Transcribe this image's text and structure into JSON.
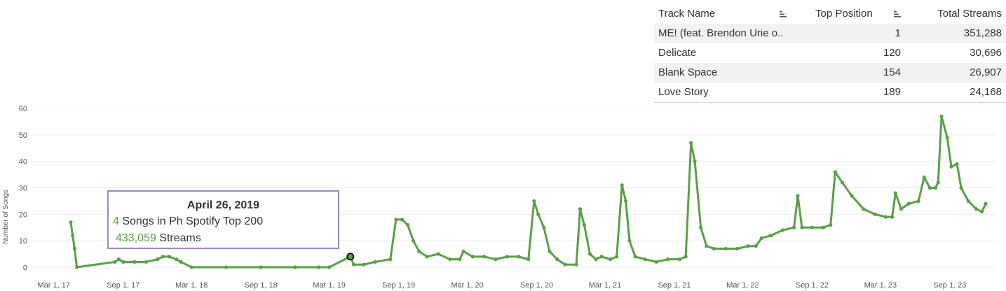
{
  "colors": {
    "line": "#5aa046",
    "grid": "#ececec",
    "tooltip_border": "#9b87c4",
    "accent": "#5aa046"
  },
  "table": {
    "headers": {
      "track": "Track Name",
      "position": "Top Position",
      "streams": "Total Streams"
    },
    "rows": [
      {
        "track": "ME! (feat. Brendon Urie o..",
        "position": "1",
        "streams": "351,288"
      },
      {
        "track": "Delicate",
        "position": "120",
        "streams": "30,696"
      },
      {
        "track": "Blank Space",
        "position": "154",
        "streams": "26,907"
      },
      {
        "track": "Love Story",
        "position": "189",
        "streams": "24,168"
      }
    ]
  },
  "tooltip": {
    "date": "April 26, 2019",
    "songs_count": "4",
    "songs_text": " Songs in Ph Spotify Top 200",
    "streams_count": "433,059",
    "streams_text": " Streams"
  },
  "chart_data": {
    "type": "line",
    "ylabel": "Number of Songs",
    "ylim": [
      0,
      60
    ],
    "yticks": [
      0,
      10,
      20,
      30,
      40,
      50,
      60
    ],
    "grid": true,
    "xticks": [
      "Mar 1, 17",
      "Sep 1, 17",
      "Mar 1, 18",
      "Sep 1, 18",
      "Mar 1, 19",
      "Sep 1, 19",
      "Mar 1, 20",
      "Sep 1, 20",
      "Mar 1, 21",
      "Sep 1, 21",
      "Mar 1, 22",
      "Sep 1, 22",
      "Mar 1, 23",
      "Sep 1, 23"
    ],
    "xlim": [
      "2017-01-01",
      "2023-12-31"
    ],
    "highlight": {
      "x": "2019-04-26",
      "y": 4
    },
    "points": [
      [
        "2017-04-15",
        17
      ],
      [
        "2017-04-20",
        12
      ],
      [
        "2017-04-25",
        7
      ],
      [
        "2017-05-01",
        0
      ],
      [
        "2017-08-10",
        2
      ],
      [
        "2017-08-20",
        3
      ],
      [
        "2017-09-01",
        2
      ],
      [
        "2017-10-01",
        2
      ],
      [
        "2017-11-01",
        2
      ],
      [
        "2017-12-01",
        3
      ],
      [
        "2017-12-15",
        4
      ],
      [
        "2018-01-01",
        4
      ],
      [
        "2018-01-20",
        3
      ],
      [
        "2018-02-01",
        2
      ],
      [
        "2018-03-01",
        0
      ],
      [
        "2018-06-01",
        0
      ],
      [
        "2018-09-01",
        0
      ],
      [
        "2018-12-01",
        0
      ],
      [
        "2019-02-01",
        0
      ],
      [
        "2019-03-01",
        0
      ],
      [
        "2019-04-26",
        4
      ],
      [
        "2019-05-05",
        1
      ],
      [
        "2019-06-01",
        1
      ],
      [
        "2019-07-01",
        2
      ],
      [
        "2019-08-10",
        3
      ],
      [
        "2019-08-25",
        18
      ],
      [
        "2019-09-10",
        18
      ],
      [
        "2019-09-25",
        16
      ],
      [
        "2019-10-10",
        10
      ],
      [
        "2019-10-25",
        6
      ],
      [
        "2019-11-15",
        4
      ],
      [
        "2019-12-15",
        5
      ],
      [
        "2020-01-15",
        3
      ],
      [
        "2020-02-10",
        3
      ],
      [
        "2020-02-20",
        6
      ],
      [
        "2020-03-15",
        4
      ],
      [
        "2020-04-15",
        4
      ],
      [
        "2020-05-15",
        3
      ],
      [
        "2020-06-15",
        4
      ],
      [
        "2020-07-15",
        4
      ],
      [
        "2020-08-10",
        3
      ],
      [
        "2020-08-25",
        25
      ],
      [
        "2020-09-05",
        20
      ],
      [
        "2020-09-20",
        15
      ],
      [
        "2020-10-05",
        6
      ],
      [
        "2020-10-25",
        3
      ],
      [
        "2020-11-15",
        1
      ],
      [
        "2020-12-15",
        1
      ],
      [
        "2020-12-25",
        22
      ],
      [
        "2021-01-05",
        16
      ],
      [
        "2021-01-20",
        5
      ],
      [
        "2021-02-05",
        3
      ],
      [
        "2021-02-20",
        4
      ],
      [
        "2021-03-15",
        3
      ],
      [
        "2021-04-01",
        4
      ],
      [
        "2021-04-15",
        31
      ],
      [
        "2021-04-25",
        25
      ],
      [
        "2021-05-05",
        10
      ],
      [
        "2021-05-20",
        4
      ],
      [
        "2021-06-15",
        3
      ],
      [
        "2021-07-15",
        2
      ],
      [
        "2021-08-15",
        3
      ],
      [
        "2021-09-15",
        3
      ],
      [
        "2021-10-01",
        4
      ],
      [
        "2021-10-15",
        47
      ],
      [
        "2021-10-25",
        40
      ],
      [
        "2021-11-10",
        15
      ],
      [
        "2021-11-25",
        8
      ],
      [
        "2021-12-15",
        7
      ],
      [
        "2022-01-15",
        7
      ],
      [
        "2022-02-15",
        7
      ],
      [
        "2022-03-15",
        8
      ],
      [
        "2022-04-05",
        8
      ],
      [
        "2022-04-20",
        11
      ],
      [
        "2022-05-15",
        12
      ],
      [
        "2022-06-15",
        14
      ],
      [
        "2022-07-15",
        15
      ],
      [
        "2022-07-25",
        27
      ],
      [
        "2022-08-05",
        15
      ],
      [
        "2022-09-01",
        15
      ],
      [
        "2022-10-01",
        15
      ],
      [
        "2022-10-20",
        16
      ],
      [
        "2022-11-01",
        36
      ],
      [
        "2022-11-20",
        32
      ],
      [
        "2022-12-15",
        27
      ],
      [
        "2023-01-15",
        22
      ],
      [
        "2023-02-15",
        20
      ],
      [
        "2023-03-15",
        19
      ],
      [
        "2023-04-01",
        19
      ],
      [
        "2023-04-10",
        28
      ],
      [
        "2023-04-25",
        22
      ],
      [
        "2023-05-15",
        24
      ],
      [
        "2023-06-10",
        25
      ],
      [
        "2023-06-25",
        34
      ],
      [
        "2023-07-10",
        30
      ],
      [
        "2023-07-25",
        30
      ],
      [
        "2023-08-01",
        32
      ],
      [
        "2023-08-10",
        57
      ],
      [
        "2023-08-25",
        49
      ],
      [
        "2023-09-05",
        38
      ],
      [
        "2023-09-20",
        39
      ],
      [
        "2023-10-01",
        30
      ],
      [
        "2023-10-20",
        25
      ],
      [
        "2023-11-10",
        22
      ],
      [
        "2023-11-25",
        21
      ],
      [
        "2023-12-05",
        24
      ]
    ]
  }
}
